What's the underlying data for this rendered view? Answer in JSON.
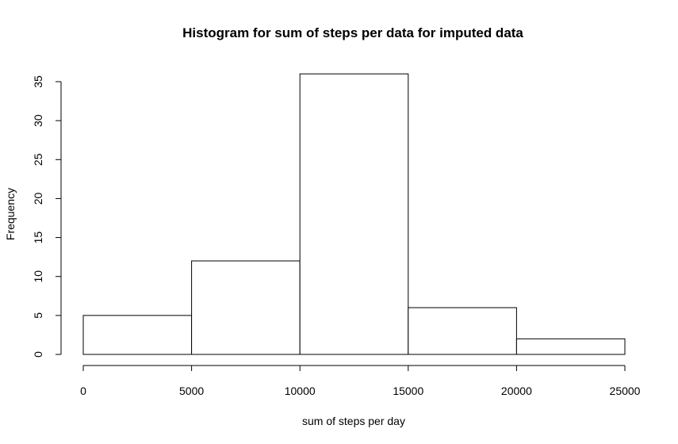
{
  "chart_data": {
    "type": "bar",
    "title": "Histogram for sum of steps per data for imputed data",
    "xlabel": "sum of steps per day",
    "ylabel": "Frequency",
    "bins": [
      {
        "start": 0,
        "end": 5000,
        "count": 5
      },
      {
        "start": 5000,
        "end": 10000,
        "count": 12
      },
      {
        "start": 10000,
        "end": 15000,
        "count": 36
      },
      {
        "start": 15000,
        "end": 20000,
        "count": 6
      },
      {
        "start": 20000,
        "end": 25000,
        "count": 2
      }
    ],
    "xlim": [
      0,
      25000
    ],
    "ylim": [
      0,
      35
    ],
    "x_ticks": [
      0,
      5000,
      10000,
      15000,
      20000,
      25000
    ],
    "y_ticks": [
      0,
      5,
      10,
      15,
      20,
      25,
      30,
      35
    ],
    "grid": false,
    "legend": "none"
  }
}
